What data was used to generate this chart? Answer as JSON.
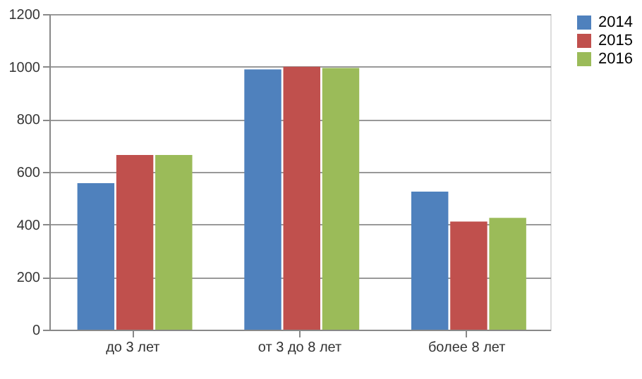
{
  "chart_data": {
    "type": "bar",
    "categories": [
      "до 3 лет",
      "от 3 до 8 лет",
      "более 8 лет"
    ],
    "series": [
      {
        "name": "2014",
        "color": "#4f81bd",
        "values": [
          557,
          990,
          525
        ]
      },
      {
        "name": "2015",
        "color": "#c0504d",
        "values": [
          664,
          1000,
          411
        ]
      },
      {
        "name": "2016",
        "color": "#9bbb59",
        "values": [
          664,
          995,
          425
        ]
      }
    ],
    "ylim": [
      0,
      1200
    ],
    "yticks": [
      0,
      200,
      400,
      600,
      800,
      1000,
      1200
    ],
    "grid": "y",
    "legend": "right"
  }
}
